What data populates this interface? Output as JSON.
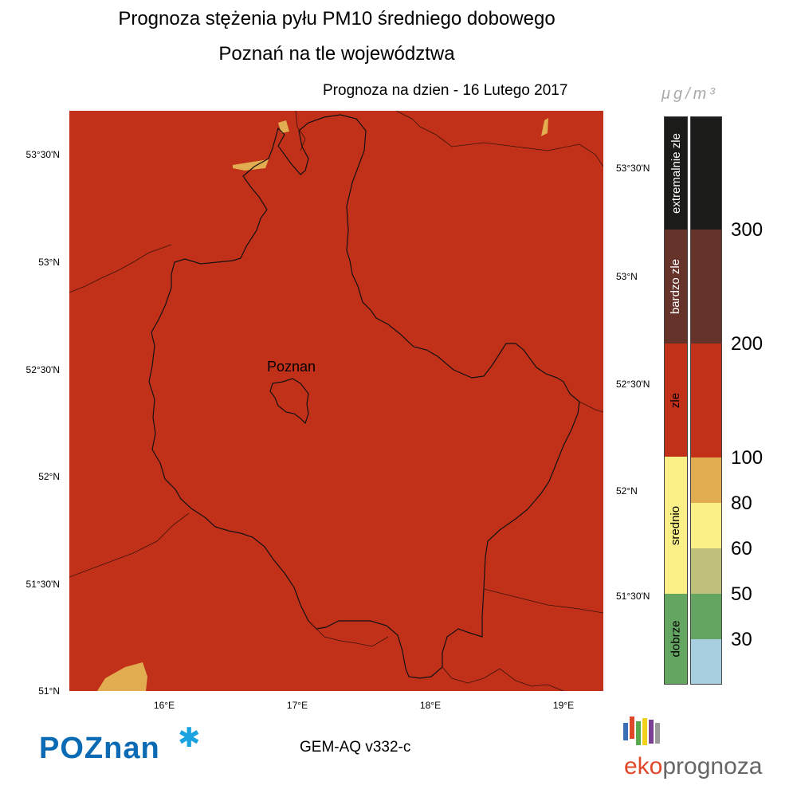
{
  "title_line1": "Prognoza stężenia pyłu PM10 średniego dobowego",
  "title_line2": "Poznań na tle województwa",
  "forecast_label": "Prognoza na dzien -  16 Lutego 2017",
  "unit": "μg/m³",
  "city_label": "Poznan",
  "model_label": "GEM-AQ v332-c",
  "lat_labels_left": [
    "53°30'N",
    "53°N",
    "52°30'N",
    "52°N",
    "51°30'N",
    "51°N"
  ],
  "lat_labels_right": [
    "53°30'N",
    "53°N",
    "52°30'N",
    "52°N",
    "51°30'N"
  ],
  "lon_labels": [
    "16°E",
    "17°E",
    "18°E",
    "19°E"
  ],
  "legend": {
    "categories": [
      {
        "label": "extremalnie zle",
        "color": "#1b1b19"
      },
      {
        "label": "bardzo zle",
        "color": "#66332b"
      },
      {
        "label": "zle",
        "color": "#c1311a"
      },
      {
        "label": "srednio",
        "color": "#fbf087"
      },
      {
        "label": "dobrze",
        "color": "#64a561"
      }
    ],
    "swatches": [
      {
        "color": "#1b1b19"
      },
      {
        "color": "#66332b"
      },
      {
        "color": "#c1311a"
      },
      {
        "color": "#e2ac50"
      },
      {
        "color": "#fbf087"
      },
      {
        "color": "#bfc07a"
      },
      {
        "color": "#64a561"
      },
      {
        "color": "#a8cfe0"
      }
    ],
    "ticks": [
      "300",
      "200",
      "100",
      "80",
      "60",
      "50",
      "30"
    ]
  },
  "colors": {
    "map_fill": "#c1311a",
    "small_patch": "#e2ac50"
  },
  "logos": {
    "poznan": "POZnan",
    "eko_a": "eko",
    "eko_b": "prognoza"
  }
}
